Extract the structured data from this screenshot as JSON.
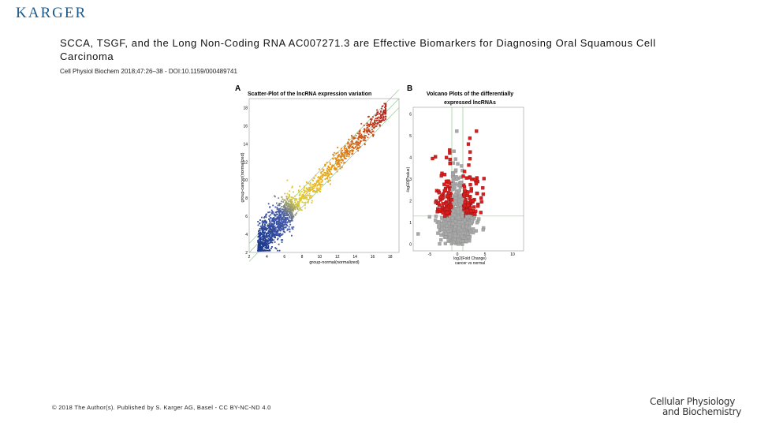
{
  "header": {
    "publisher_logo": "KARGER"
  },
  "article": {
    "title": "SCCA, TSGF, and the Long Non-Coding RNA AC007271.3 are Effective Biomarkers for Diagnosing Oral Squamous Cell Carcinoma",
    "citation": "Cell Physiol Biochem 2018;47:26–38 - DOI:10.1159/000489741"
  },
  "figure": {
    "panel_a": {
      "letter": "A",
      "title": "Scatter-Plot of the lncRNA expression variation",
      "xlabel": "group-normal(normalized)",
      "ylabel": "group-cancer(normalized)",
      "xticks": [
        "2",
        "4",
        "6",
        "8",
        "10",
        "12",
        "14",
        "16",
        "18"
      ],
      "yticks": [
        "2",
        "4",
        "6",
        "8",
        "10",
        "12",
        "14",
        "16",
        "18"
      ]
    },
    "panel_b": {
      "letter": "B",
      "title_line1": "Volcano Plots of the differentially",
      "title_line2": "expressed lncRNAs",
      "xlabel_line1": "log2(Fold Change)",
      "xlabel_line2": "cancer vs normal",
      "ylabel": "-log10(Pvalue)",
      "xticks": [
        "-5",
        "0",
        "5",
        "10"
      ],
      "yticks": [
        "0",
        "1",
        "2",
        "3",
        "4",
        "5",
        "6"
      ]
    },
    "colors": {
      "up": "#d81e1e",
      "ns": "#a8a8a8",
      "low": "#1d3a8f",
      "high": "#c0392b",
      "grid": "#7fbf7f"
    }
  },
  "footer": {
    "copyright": "© 2018 The Author(s). Published by S. Karger AG, Basel - CC BY-NC-ND 4.0"
  },
  "journal_logo": {
    "line1": "Cellular Physiology",
    "line2": "and Biochemistry"
  }
}
